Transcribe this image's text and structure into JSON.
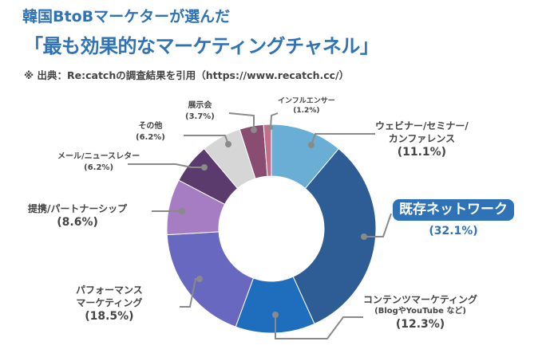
{
  "header": {
    "title_line1": "韓国BtoBマーケターが選んだ",
    "title_line2": "「最も効果的なマーケティングチャネル」",
    "source": "※ 出典：Re:catchの調査結果を引用（https://www.recatch.cc/）"
  },
  "chart_data": {
    "type": "pie",
    "donut": true,
    "start": "top",
    "direction": "clockwise",
    "slices": [
      {
        "label": "ウェビナー/セミナー/カンファレンス",
        "label_lines": [
          "ウェビナー/セミナー/",
          "カンファレンス"
        ],
        "value": 11.1,
        "value_label": "(11.1%)",
        "color": "#6aaed6"
      },
      {
        "label": "既存ネットワーク",
        "label_lines": [
          "既存ネットワーク"
        ],
        "value": 32.1,
        "value_label": "(32.1%)",
        "color": "#2e5d96",
        "highlight": true
      },
      {
        "label": "コンテンツマーケティング",
        "label_lines": [
          "コンテンツマーケティング",
          "(BlogやYouTube など)"
        ],
        "value": 12.3,
        "value_label": "(12.3%)",
        "color": "#1f6dbd"
      },
      {
        "label": "パフォーマンスマーケティング",
        "label_lines": [
          "パフォーマンス",
          "マーケティング"
        ],
        "value": 18.5,
        "value_label": "(18.5%)",
        "color": "#6868c0"
      },
      {
        "label": "提携/パートナーシップ",
        "label_lines": [
          "提携/パートナーシップ"
        ],
        "value": 8.6,
        "value_label": "(8.6%)",
        "color": "#a67cc2"
      },
      {
        "label": "メール/ニュースレター",
        "label_lines": [
          "メール/ニュースレター"
        ],
        "value": 6.2,
        "value_label": "(6.2%)",
        "color": "#5b3a6e"
      },
      {
        "label": "その他",
        "label_lines": [
          "その他"
        ],
        "value": 6.2,
        "value_label": "(6.2%)",
        "color": "#d6d6d6"
      },
      {
        "label": "展示会",
        "label_lines": [
          "展示会"
        ],
        "value": 3.7,
        "value_label": "(3.7%)",
        "color": "#8a4d72"
      },
      {
        "label": "インフルエンサー",
        "label_lines": [
          "インフルエンサー"
        ],
        "value": 1.2,
        "value_label": "(1.2%)",
        "color": "#c27089"
      }
    ]
  }
}
